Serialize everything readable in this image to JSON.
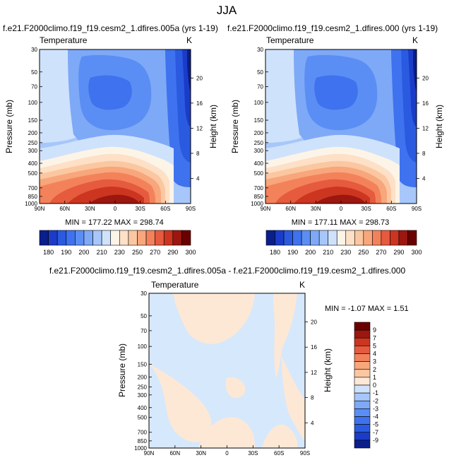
{
  "figure": {
    "title": "JJA"
  },
  "colors": {
    "full_field": [
      "#0a1e8c",
      "#1a3cc8",
      "#2a5ae0",
      "#3f72ee",
      "#5b8ef4",
      "#7ea9f7",
      "#a7c7fa",
      "#cfe2fc",
      "#fdf4e8",
      "#fde0c6",
      "#fbc7a1",
      "#f8a67b",
      "#f3825b",
      "#e65a3e",
      "#cc3520",
      "#9b1710",
      "#6b0000"
    ],
    "difference": [
      "#0a1e8c",
      "#1a3cc8",
      "#2a5ae0",
      "#3f72ee",
      "#5b8ef4",
      "#7ea9f7",
      "#a7c7fa",
      "#cfe2fc",
      "#fde8d6",
      "#fbc7a1",
      "#f8a67b",
      "#f3825b",
      "#e65a3e",
      "#cc3520",
      "#9b1710",
      "#6b0000"
    ],
    "difference_positive_fill": "#fde8d6",
    "difference_negative_fill": "#d6e8fb"
  },
  "chart_data": [
    {
      "type": "heatmap",
      "panel_title": "f.e21.F2000climo.f19_f19.cesm2_1.dfires.005a (yrs 1-19)",
      "left_label": "Temperature",
      "right_label": "K",
      "xlabel": "",
      "ylabel": "Pressure (mb)",
      "y2label": "Height (km)",
      "x_ticks": [
        "90N",
        "60N",
        "30N",
        "0",
        "30S",
        "60S",
        "90S"
      ],
      "x_range": [
        90,
        -90
      ],
      "y_ticks": [
        "30",
        "50",
        "70",
        "100",
        "150",
        "200",
        "250",
        "300",
        "400",
        "500",
        "700",
        "850",
        "1000"
      ],
      "y_range": [
        30,
        1000
      ],
      "y_scale": "log",
      "y2_ticks": [
        "20",
        "16",
        "12",
        "8",
        "4"
      ],
      "stats": "MIN = 177.22   MAX = 298.74",
      "min": 177.22,
      "max": 298.74,
      "colorbar_labels": [
        "180",
        "190",
        "200",
        "210",
        "230",
        "250",
        "270",
        "290",
        "300"
      ]
    },
    {
      "type": "heatmap",
      "panel_title": "f.e21.F2000climo.f19_f19.cesm2_1.dfires.000 (yrs 1-19)",
      "left_label": "Temperature",
      "right_label": "K",
      "xlabel": "",
      "ylabel": "Pressure (mb)",
      "y2label": "Height (km)",
      "x_ticks": [
        "90N",
        "60N",
        "30N",
        "0",
        "30S",
        "60S",
        "90S"
      ],
      "x_range": [
        90,
        -90
      ],
      "y_ticks": [
        "30",
        "50",
        "70",
        "100",
        "150",
        "200",
        "250",
        "300",
        "400",
        "500",
        "700",
        "850",
        "1000"
      ],
      "y_range": [
        30,
        1000
      ],
      "y_scale": "log",
      "y2_ticks": [
        "20",
        "16",
        "12",
        "8",
        "4"
      ],
      "stats": "MIN = 177.11   MAX = 298.73",
      "min": 177.11,
      "max": 298.73,
      "colorbar_labels": [
        "180",
        "190",
        "200",
        "210",
        "230",
        "250",
        "270",
        "290",
        "300"
      ]
    },
    {
      "type": "heatmap",
      "panel_title": "f.e21.F2000climo.f19_f19.cesm2_1.dfires.005a - f.e21.F2000climo.f19_f19.cesm2_1.dfires.000",
      "left_label": "Temperature",
      "right_label": "K",
      "xlabel": "",
      "ylabel": "Pressure (mb)",
      "y2label": "Height (km)",
      "x_ticks": [
        "90N",
        "60N",
        "30N",
        "0",
        "30S",
        "60S",
        "90S"
      ],
      "x_range": [
        90,
        -90
      ],
      "y_ticks": [
        "30",
        "50",
        "70",
        "100",
        "150",
        "200",
        "250",
        "300",
        "400",
        "500",
        "700",
        "850",
        "1000"
      ],
      "y_range": [
        30,
        1000
      ],
      "y_scale": "log",
      "y2_ticks": [
        "20",
        "16",
        "12",
        "8",
        "4"
      ],
      "stats": "MIN =  -1.07   MAX =   1.51",
      "min": -1.07,
      "max": 1.51,
      "colorbar_labels": [
        "9",
        "7",
        "5",
        "4",
        "3",
        "2",
        "1",
        "0",
        "-1",
        "-2",
        "-3",
        "-4",
        "-5",
        "-7",
        "-9"
      ]
    }
  ]
}
